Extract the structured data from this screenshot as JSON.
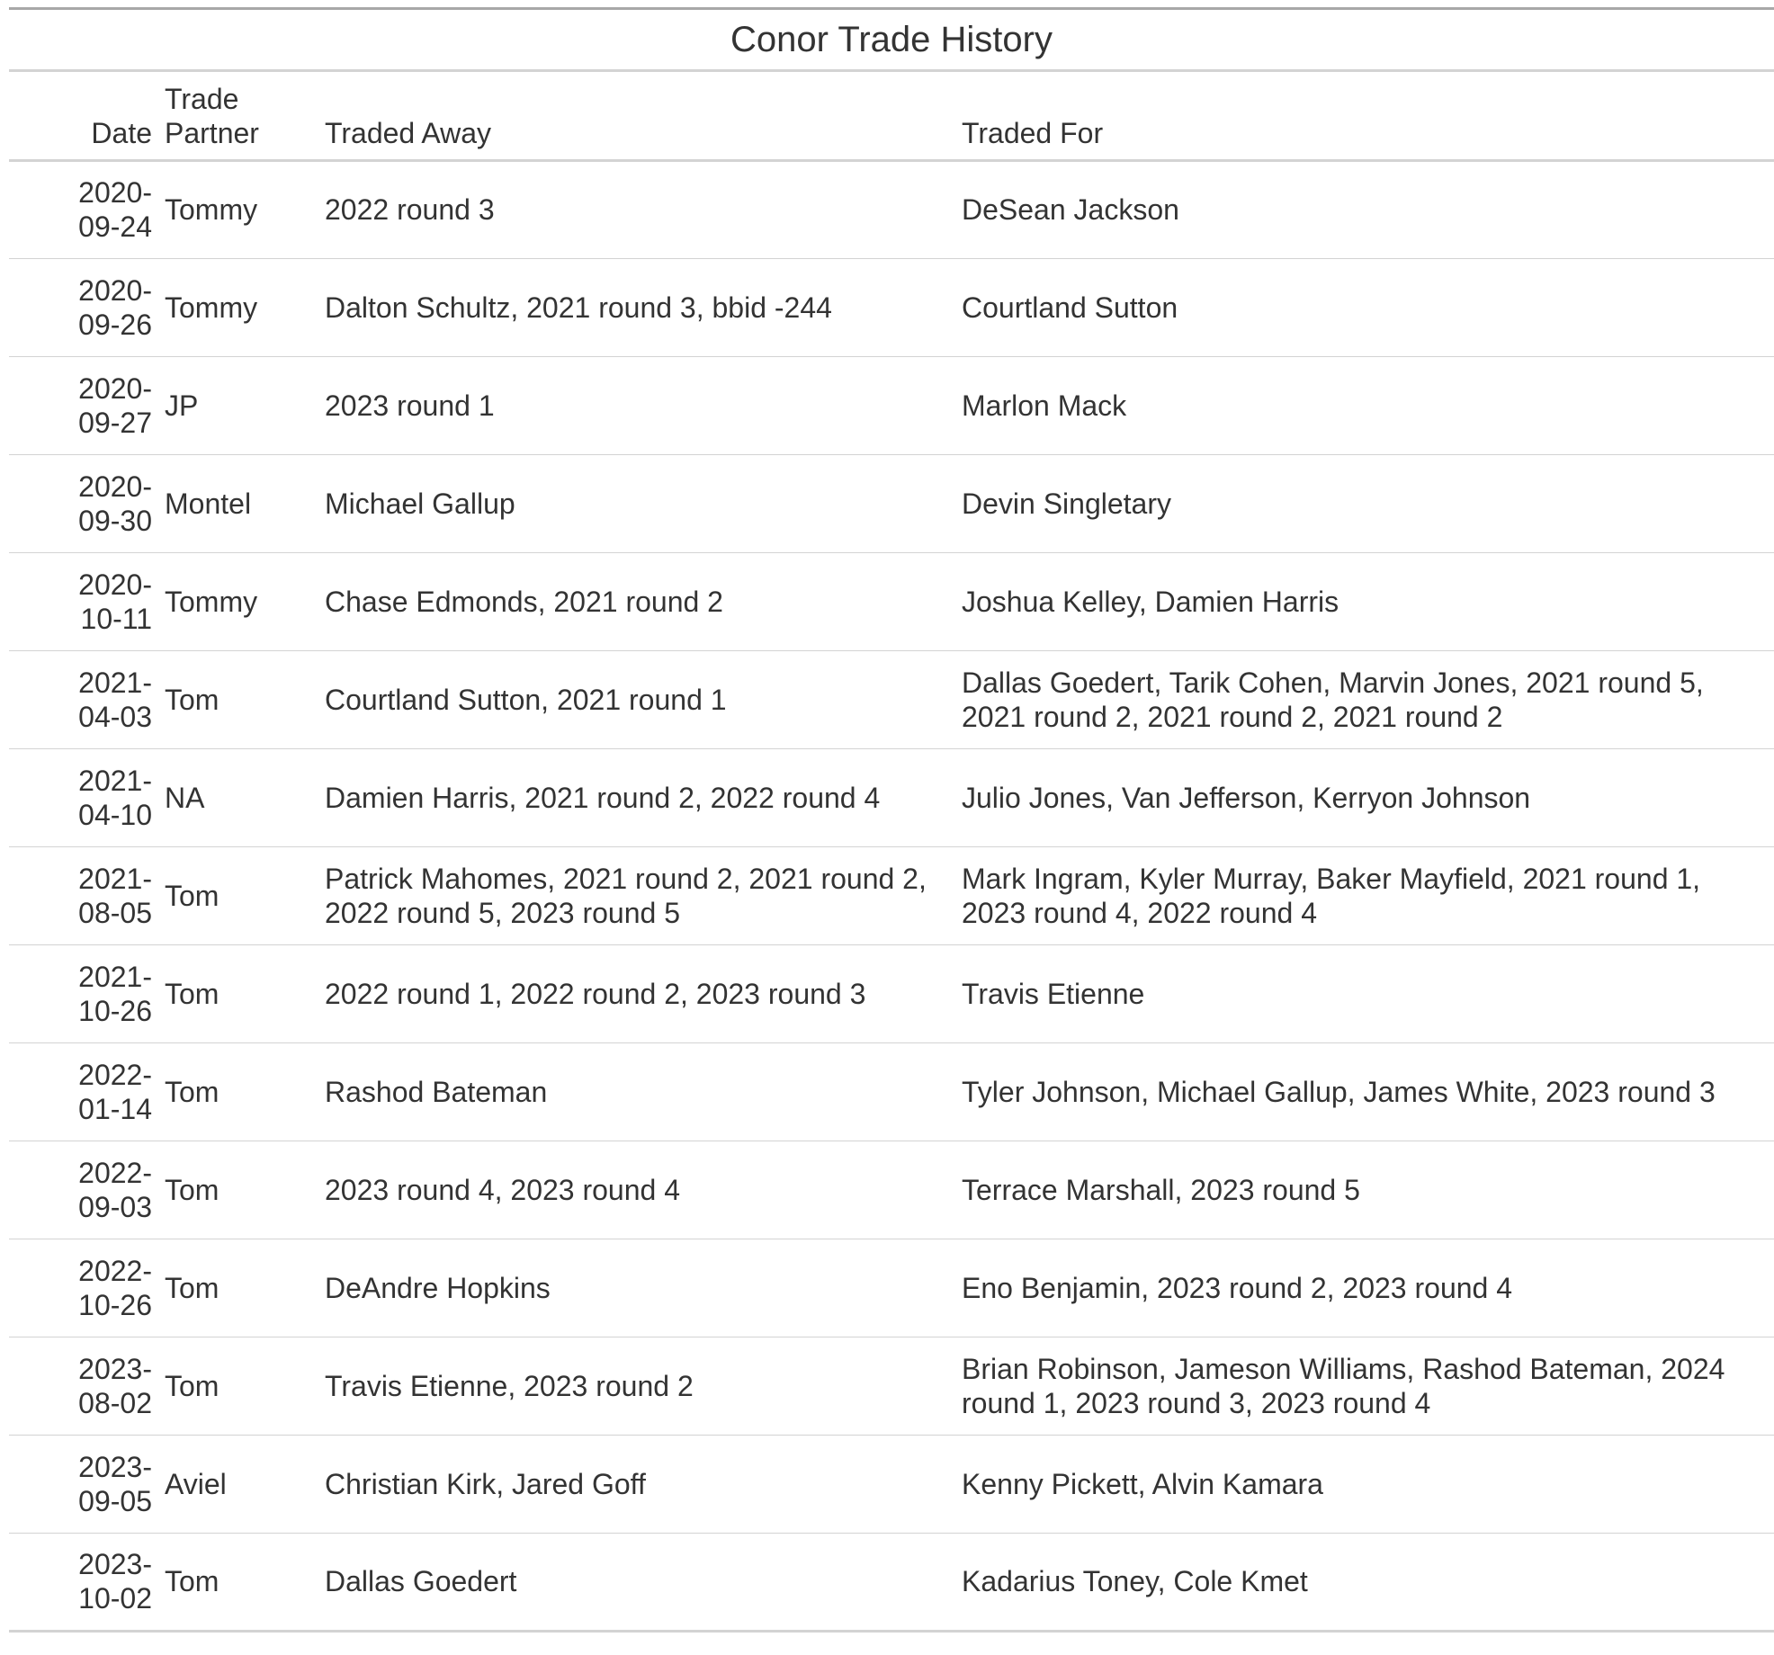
{
  "title": "Conor Trade History",
  "columns": {
    "date": "Date",
    "partner": "Trade Partner",
    "traded_away": "Traded Away",
    "traded_for": "Traded For"
  },
  "rows": [
    {
      "date": "2020-09-24",
      "partner": "Tommy",
      "traded_away": "2022 round 3",
      "traded_for": "DeSean Jackson"
    },
    {
      "date": "2020-09-26",
      "partner": "Tommy",
      "traded_away": "Dalton Schultz, 2021 round 3, bbid -244",
      "traded_for": "Courtland Sutton"
    },
    {
      "date": "2020-09-27",
      "partner": "JP",
      "traded_away": "2023 round 1",
      "traded_for": "Marlon Mack"
    },
    {
      "date": "2020-09-30",
      "partner": "Montel",
      "traded_away": "Michael Gallup",
      "traded_for": "Devin Singletary"
    },
    {
      "date": "2020-10-11",
      "partner": "Tommy",
      "traded_away": "Chase Edmonds, 2021 round 2",
      "traded_for": "Joshua Kelley, Damien Harris"
    },
    {
      "date": "2021-04-03",
      "partner": "Tom",
      "traded_away": "Courtland Sutton, 2021 round 1",
      "traded_for": "Dallas Goedert, Tarik Cohen, Marvin Jones, 2021 round 5, 2021 round 2, 2021 round 2, 2021 round 2"
    },
    {
      "date": "2021-04-10",
      "partner": "NA",
      "traded_away": "Damien Harris, 2021 round 2, 2022 round 4",
      "traded_for": "Julio Jones, Van Jefferson, Kerryon Johnson"
    },
    {
      "date": "2021-08-05",
      "partner": "Tom",
      "traded_away": "Patrick Mahomes, 2021 round 2, 2021 round 2, 2022 round 5, 2023 round 5",
      "traded_for": "Mark Ingram, Kyler Murray, Baker Mayfield, 2021 round 1, 2023 round 4, 2022 round 4"
    },
    {
      "date": "2021-10-26",
      "partner": "Tom",
      "traded_away": "2022 round 1, 2022 round 2, 2023 round 3",
      "traded_for": "Travis Etienne"
    },
    {
      "date": "2022-01-14",
      "partner": "Tom",
      "traded_away": "Rashod Bateman",
      "traded_for": "Tyler Johnson, Michael Gallup, James White, 2023 round 3"
    },
    {
      "date": "2022-09-03",
      "partner": "Tom",
      "traded_away": "2023 round 4, 2023 round 4",
      "traded_for": "Terrace Marshall, 2023 round 5"
    },
    {
      "date": "2022-10-26",
      "partner": "Tom",
      "traded_away": "DeAndre Hopkins",
      "traded_for": "Eno Benjamin, 2023 round 2, 2023 round 4"
    },
    {
      "date": "2023-08-02",
      "partner": "Tom",
      "traded_away": "Travis Etienne, 2023 round 2",
      "traded_for": "Brian Robinson, Jameson Williams, Rashod Bateman, 2024 round 1, 2023 round 3, 2023 round 4"
    },
    {
      "date": "2023-09-05",
      "partner": "Aviel",
      "traded_away": "Christian Kirk, Jared Goff",
      "traded_for": "Kenny Pickett, Alvin Kamara"
    },
    {
      "date": "2023-10-02",
      "partner": "Tom",
      "traded_away": "Dallas Goedert",
      "traded_for": "Kadarius Toney, Cole Kmet"
    }
  ]
}
